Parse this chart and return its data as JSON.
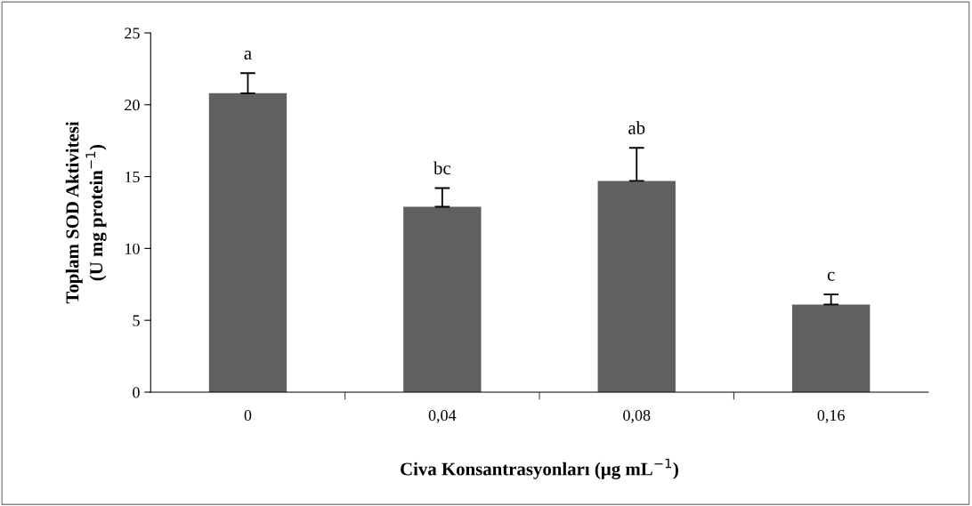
{
  "chart_data": {
    "type": "bar",
    "xlabel": "Civa Konsantrasyonları (µg mL$^{−1}$)",
    "ylabel": "Toplam SOD Aktivitesi\n(U mg protein$^{−1}$)",
    "categories": [
      "0",
      "0,04",
      "0,08",
      "0,16"
    ],
    "values": [
      20.8,
      12.9,
      14.7,
      6.1
    ],
    "errors": [
      [
        20.8,
        22.2
      ],
      [
        12.9,
        14.2
      ],
      [
        14.7,
        17.0
      ],
      [
        6.1,
        6.8
      ]
    ],
    "color": "#606060",
    "ylim": [
      0,
      25
    ],
    "yticks": [
      0,
      5,
      10,
      15,
      20,
      25
    ],
    "grid": false,
    "legend": false,
    "annotations": [
      {
        "text": "a",
        "x": "0",
        "y": 22.2
      },
      {
        "text": "bc",
        "x": "0,04",
        "y": 14.2
      },
      {
        "text": "ab",
        "x": "0,08",
        "y": 17.0
      },
      {
        "text": "c",
        "x": "0,16",
        "y": 6.8
      }
    ]
  }
}
